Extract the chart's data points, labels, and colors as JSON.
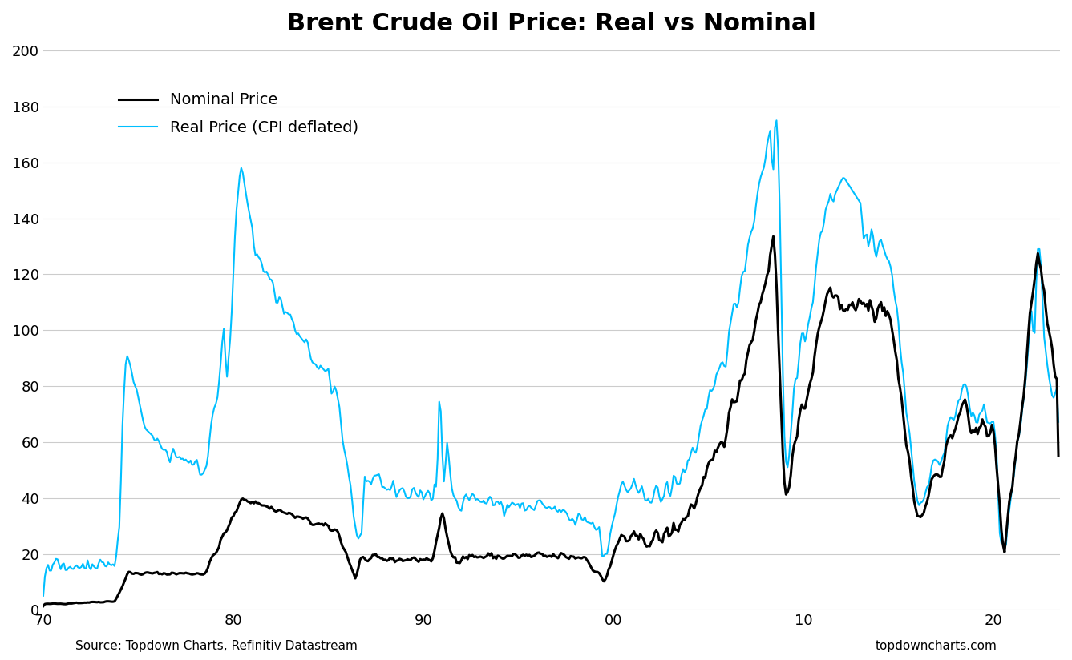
{
  "title": "Brent Crude Oil Price: Real vs Nominal",
  "source_left": "Source: Topdown Charts, Refinitiv Datastream",
  "source_right": "topdowncharts.com",
  "nominal_color": "#000000",
  "real_color": "#00BFFF",
  "nominal_linewidth": 2.2,
  "real_linewidth": 1.5,
  "ylim": [
    0,
    200
  ],
  "yticks": [
    0,
    20,
    40,
    60,
    80,
    100,
    120,
    140,
    160,
    180,
    200
  ],
  "xtick_positions": [
    1970,
    1980,
    1990,
    2000,
    2010,
    2020
  ],
  "xtick_labels": [
    "70",
    "80",
    "90",
    "00",
    "10",
    "20"
  ],
  "background_color": "#ffffff",
  "grid_color": "#cccccc",
  "legend_nominal": "Nominal Price",
  "legend_real": "Real Price (CPI deflated)"
}
